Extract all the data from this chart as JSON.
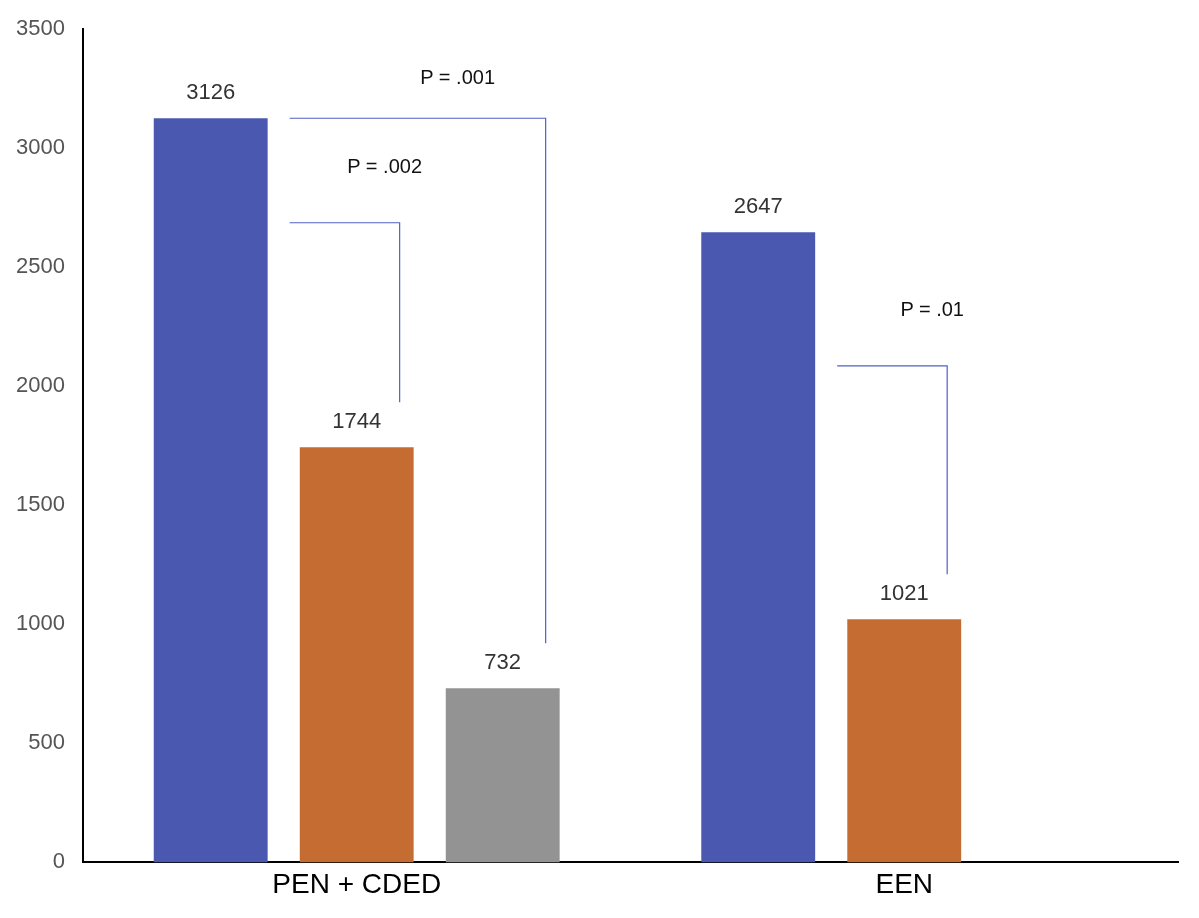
{
  "chart_data": {
    "type": "bar",
    "categories": [
      "PEN + CDED",
      "EEN"
    ],
    "series": [
      {
        "color": "#4a58b0",
        "values": [
          3126,
          2647
        ]
      },
      {
        "color": "#c46c32",
        "values": [
          1744,
          1021
        ]
      },
      {
        "color": "#939393",
        "values": [
          732,
          null
        ]
      }
    ],
    "ylim": [
      0,
      3500
    ],
    "yticks": [
      0,
      500,
      1000,
      1500,
      2000,
      2500,
      3000,
      3500
    ],
    "grid": false,
    "legend": false,
    "data_labels": true,
    "annotations": [
      "P = .001",
      "P = .002",
      "P = .01"
    ]
  }
}
